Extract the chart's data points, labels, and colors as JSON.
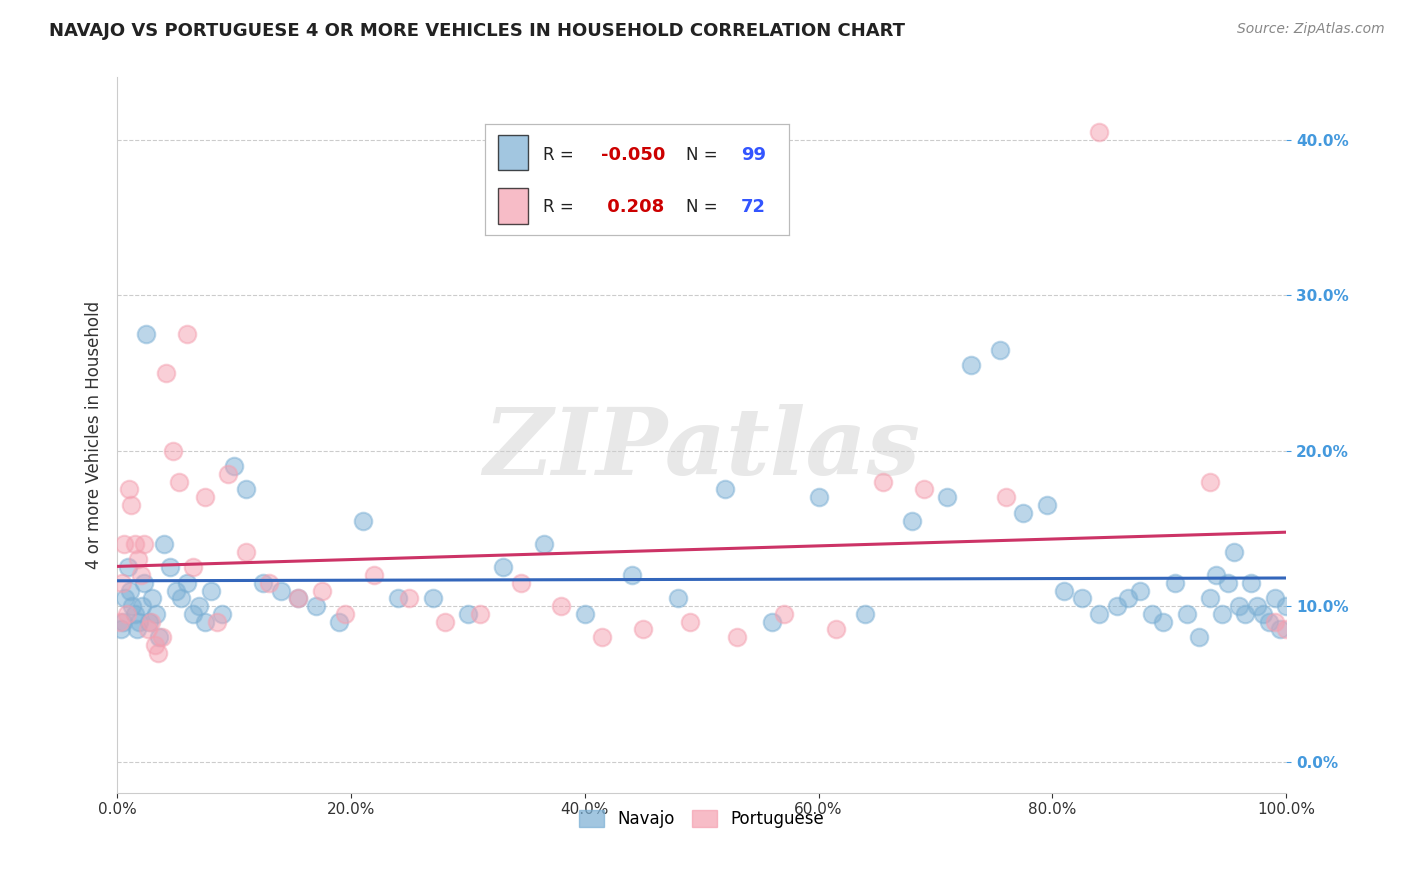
{
  "title": "NAVAJO VS PORTUGUESE 4 OR MORE VEHICLES IN HOUSEHOLD CORRELATION CHART",
  "source": "Source: ZipAtlas.com",
  "ylabel": "4 or more Vehicles in Household",
  "xlim": [
    0,
    100
  ],
  "ylim": [
    -2,
    44
  ],
  "xticks": [
    0,
    20,
    40,
    60,
    80,
    100
  ],
  "xticklabels": [
    "0.0%",
    "20.0%",
    "40.0%",
    "60.0%",
    "80.0%",
    "100.0%"
  ],
  "yticks": [
    0,
    10,
    20,
    30,
    40
  ],
  "yticklabels": [
    "0.0%",
    "10.0%",
    "20.0%",
    "30.0%",
    "40.0%"
  ],
  "navajo_color": "#7BAFD4",
  "portuguese_color": "#F4A0B0",
  "navajo_R": -0.05,
  "navajo_N": 99,
  "portuguese_R": 0.208,
  "portuguese_N": 72,
  "navajo_x": [
    0.3,
    0.5,
    0.7,
    0.9,
    1.1,
    1.3,
    1.5,
    1.7,
    1.9,
    2.1,
    2.3,
    2.5,
    2.7,
    3.0,
    3.3,
    3.6,
    4.0,
    4.5,
    5.0,
    5.5,
    6.0,
    6.5,
    7.0,
    7.5,
    8.0,
    9.0,
    10.0,
    11.0,
    12.5,
    14.0,
    15.5,
    17.0,
    19.0,
    21.0,
    24.0,
    27.0,
    30.0,
    33.0,
    36.5,
    40.0,
    44.0,
    48.0,
    52.0,
    56.0,
    60.0,
    64.0,
    68.0,
    71.0,
    73.0,
    75.5,
    77.5,
    79.5,
    81.0,
    82.5,
    84.0,
    85.5,
    86.5,
    87.5,
    88.5,
    89.5,
    90.5,
    91.5,
    92.5,
    93.5,
    94.0,
    94.5,
    95.0,
    95.5,
    96.0,
    96.5,
    97.0,
    97.5,
    98.0,
    98.5,
    99.0,
    99.5,
    100.0
  ],
  "navajo_y": [
    8.5,
    9.0,
    10.5,
    12.5,
    11.0,
    10.0,
    9.5,
    8.5,
    9.0,
    10.0,
    11.5,
    27.5,
    9.0,
    10.5,
    9.5,
    8.0,
    14.0,
    12.5,
    11.0,
    10.5,
    11.5,
    9.5,
    10.0,
    9.0,
    11.0,
    9.5,
    19.0,
    17.5,
    11.5,
    11.0,
    10.5,
    10.0,
    9.0,
    15.5,
    10.5,
    10.5,
    9.5,
    12.5,
    14.0,
    9.5,
    12.0,
    10.5,
    17.5,
    9.0,
    17.0,
    9.5,
    15.5,
    17.0,
    25.5,
    26.5,
    16.0,
    16.5,
    11.0,
    10.5,
    9.5,
    10.0,
    10.5,
    11.0,
    9.5,
    9.0,
    11.5,
    9.5,
    8.0,
    10.5,
    12.0,
    9.5,
    11.5,
    13.5,
    10.0,
    9.5,
    11.5,
    10.0,
    9.5,
    9.0,
    10.5,
    8.5,
    10.0
  ],
  "portuguese_x": [
    0.2,
    0.4,
    0.6,
    0.8,
    1.0,
    1.2,
    1.5,
    1.8,
    2.0,
    2.3,
    2.6,
    2.9,
    3.2,
    3.5,
    3.8,
    4.2,
    4.8,
    5.3,
    6.0,
    6.5,
    7.5,
    8.5,
    9.5,
    11.0,
    13.0,
    15.5,
    17.5,
    19.5,
    22.0,
    25.0,
    28.0,
    31.0,
    34.5,
    38.0,
    41.5,
    45.0,
    49.0,
    53.0,
    57.0,
    61.5,
    65.5,
    69.0,
    76.0,
    84.0,
    93.5,
    99.0,
    100.0
  ],
  "portuguese_y": [
    9.0,
    11.5,
    14.0,
    9.5,
    17.5,
    16.5,
    14.0,
    13.0,
    12.0,
    14.0,
    8.5,
    9.0,
    7.5,
    7.0,
    8.0,
    25.0,
    20.0,
    18.0,
    27.5,
    12.5,
    17.0,
    9.0,
    18.5,
    13.5,
    11.5,
    10.5,
    11.0,
    9.5,
    12.0,
    10.5,
    9.0,
    9.5,
    11.5,
    10.0,
    8.0,
    8.5,
    9.0,
    8.0,
    9.5,
    8.5,
    18.0,
    17.5,
    17.0,
    40.5,
    18.0,
    9.0,
    8.5
  ],
  "watermark_text": "ZIPatlas",
  "background_color": "#ffffff",
  "grid_color": "#cccccc",
  "navajo_line_color": "#3366BB",
  "portuguese_line_color": "#CC3366",
  "r_color": "#CC0000",
  "n_color": "#3355FF",
  "ytick_color": "#4499DD",
  "legend_navajo_R_str": "-0.050",
  "legend_portuguese_R_str": " 0.208"
}
